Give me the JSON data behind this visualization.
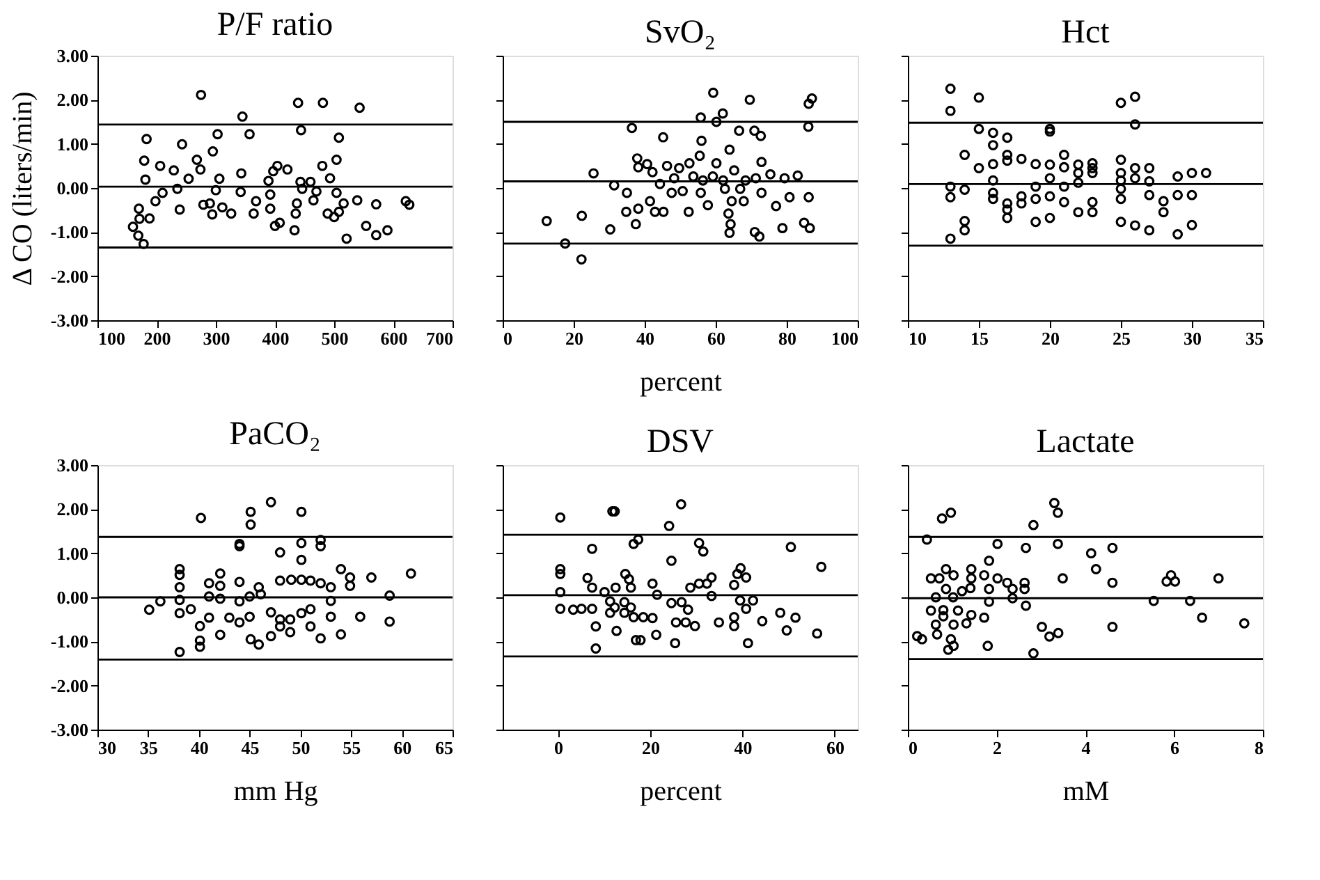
{
  "chart_data": [
    {
      "type": "scatter",
      "title": "P/F ratio",
      "ylabel": "Δ CO (liters/min)",
      "marker": "circle",
      "grid": false,
      "xlim": [
        100,
        700
      ],
      "xticks": [
        100,
        200,
        300,
        400,
        500,
        600,
        700
      ],
      "ylim": [
        -3,
        3
      ],
      "yticks": [
        {
          "value": 3,
          "label": "3.00"
        },
        {
          "value": 2,
          "label": "2.00"
        },
        {
          "value": 1,
          "label": "1.00"
        },
        {
          "value": 0,
          "label": "0.00"
        },
        {
          "value": -1,
          "label": "-1.00"
        },
        {
          "value": -2,
          "label": "-2.00"
        },
        {
          "value": -3,
          "label": "-3.00"
        }
      ],
      "ref_lines": [
        {
          "axis": "y",
          "value": 1.44,
          "color": "#000000"
        },
        {
          "axis": "y",
          "value": 0.03,
          "color": "#000000"
        },
        {
          "axis": "y",
          "value": -1.35,
          "color": "#000000"
        }
      ],
      "series": [
        {
          "color": "#000000",
          "x": [
            275,
            439,
            481,
            543,
            345,
            444,
            357,
            303,
            183,
            508,
            243,
            295,
            268,
            179,
            504,
            480,
            206,
            229,
            274,
            343,
            397,
            404,
            421,
            181,
            254,
            306,
            389,
            443,
            460,
            493,
            235,
            210,
            300,
            342,
            392,
            446,
            470,
            504,
            198,
            279,
            311,
            290,
            368,
            392,
            437,
            465,
            516,
            539,
            571,
            621,
            627,
            239,
            294,
            326,
            364,
            435,
            489,
            500,
            508,
            170,
            188,
            171,
            160,
            169,
            178,
            400,
            408,
            433,
            554,
            571,
            590,
            521
          ],
          "values": [
            2.11,
            1.93,
            1.93,
            1.82,
            1.62,
            1.31,
            1.22,
            1.22,
            1.11,
            1.14,
            0.99,
            0.83,
            0.64,
            0.62,
            0.64,
            0.5,
            0.5,
            0.4,
            0.42,
            0.33,
            0.38,
            0.5,
            0.42,
            0.19,
            0.21,
            0.21,
            0.16,
            0.14,
            0.14,
            0.22,
            -0.02,
            -0.11,
            -0.05,
            -0.09,
            -0.15,
            -0.02,
            -0.08,
            -0.11,
            -0.3,
            -0.38,
            -0.44,
            -0.35,
            -0.3,
            -0.47,
            -0.35,
            -0.28,
            -0.35,
            -0.28,
            -0.37,
            -0.3,
            -0.38,
            -0.49,
            -0.6,
            -0.58,
            -0.58,
            -0.58,
            -0.58,
            -0.66,
            -0.54,
            -0.47,
            -0.69,
            -0.7,
            -0.88,
            -1.08,
            -1.27,
            -0.86,
            -0.79,
            -0.96,
            -0.86,
            -1.07,
            -0.96,
            -1.15
          ]
        }
      ]
    },
    {
      "type": "scatter",
      "title": "SvO₂",
      "xlabel": "percent",
      "marker": "circle",
      "grid": false,
      "tick_labels": "x",
      "xlim": [
        0,
        100
      ],
      "xticks": [
        0,
        20,
        40,
        60,
        80,
        100
      ],
      "ylim": [
        -3,
        3
      ],
      "yticks": [
        3,
        2,
        1,
        0,
        -1,
        -2,
        -3
      ],
      "ref_lines": [
        {
          "axis": "y",
          "value": 1.5,
          "color": "#000000"
        },
        {
          "axis": "y",
          "value": 0.15,
          "color": "#000000"
        },
        {
          "axis": "y",
          "value": -1.26,
          "color": "#000000"
        }
      ],
      "series": [
        {
          "color": "#000000",
          "x": [
            59.3,
            69.6,
            87.1,
            86.2,
            62.0,
            60.2,
            55.8,
            36.4,
            66.6,
            70.9,
            72.7,
            45.2,
            86.1,
            56.0,
            63.9,
            55.5,
            37.9,
            38.2,
            40.7,
            25.6,
            42.2,
            46.3,
            49.7,
            52.6,
            60.2,
            65.2,
            72.9,
            75.4,
            79.4,
            83.1,
            31.4,
            44.3,
            48.3,
            53.7,
            56.4,
            59.2,
            62.1,
            68.4,
            71.3,
            35.0,
            41.5,
            47.6,
            50.7,
            55.8,
            62.6,
            66.9,
            72.9,
            42.9,
            45.3,
            52.4,
            57.8,
            64.5,
            67.9,
            77.0,
            80.8,
            86.2,
            34.8,
            38.2,
            37.5,
            63.6,
            64.2,
            63.9,
            71.0,
            72.3,
            78.8,
            84.9,
            86.5,
            12.4,
            22.3,
            30.3,
            17.6,
            22.2
          ],
          "values": [
            2.16,
            2.0,
            2.03,
            1.91,
            1.69,
            1.5,
            1.6,
            1.36,
            1.3,
            1.3,
            1.18,
            1.15,
            1.39,
            1.07,
            0.87,
            0.73,
            0.67,
            0.47,
            0.54,
            0.33,
            0.36,
            0.5,
            0.45,
            0.56,
            0.56,
            0.4,
            0.59,
            0.31,
            0.22,
            0.28,
            0.06,
            0.09,
            0.22,
            0.26,
            0.17,
            0.26,
            0.17,
            0.17,
            0.22,
            -0.11,
            -0.3,
            -0.11,
            -0.07,
            -0.11,
            -0.02,
            -0.02,
            -0.11,
            -0.54,
            -0.54,
            -0.54,
            -0.39,
            -0.3,
            -0.3,
            -0.41,
            -0.21,
            -0.21,
            -0.54,
            -0.47,
            -0.82,
            -0.58,
            -0.82,
            -1.02,
            -1.0,
            -1.1,
            -0.91,
            -0.79,
            -0.91,
            -0.75,
            -0.63,
            -0.94,
            -1.26,
            -1.62
          ]
        }
      ]
    },
    {
      "type": "scatter",
      "title": "Hct",
      "marker": "circle",
      "grid": false,
      "tick_labels": "x",
      "xlim": [
        10,
        35
      ],
      "xticks": [
        10,
        15,
        20,
        25,
        30,
        35
      ],
      "ylim": [
        -3,
        3
      ],
      "yticks": [
        3,
        2,
        1,
        0,
        -1,
        -2,
        -3
      ],
      "ref_lines": [
        {
          "axis": "y",
          "value": 1.48,
          "color": "#000000"
        },
        {
          "axis": "y",
          "value": 0.09,
          "color": "#000000"
        },
        {
          "axis": "y",
          "value": -1.31,
          "color": "#000000"
        }
      ],
      "series": [
        {
          "color": "#000000",
          "x": [
            13,
            13,
            15,
            25,
            26,
            26,
            15,
            16,
            17,
            16,
            20,
            20,
            14,
            15,
            16,
            17,
            17,
            18,
            19,
            20,
            21,
            21,
            22,
            22,
            23,
            23,
            23,
            25,
            25,
            26,
            27,
            29,
            30,
            31,
            13,
            13,
            14,
            16,
            16,
            16,
            17,
            17,
            18,
            18,
            19,
            19,
            20,
            20,
            21,
            21,
            22,
            23,
            25,
            25,
            25,
            26,
            27,
            27,
            28,
            28,
            29,
            30,
            17,
            19,
            20,
            22,
            23,
            14,
            14,
            13,
            25,
            26,
            27,
            29,
            30
          ],
          "values": [
            2.25,
            1.75,
            2.05,
            1.93,
            2.07,
            1.44,
            1.34,
            1.25,
            1.14,
            0.97,
            1.34,
            1.28,
            0.75,
            0.45,
            0.54,
            0.75,
            0.62,
            0.66,
            0.54,
            0.53,
            0.75,
            0.47,
            0.53,
            0.34,
            0.56,
            0.45,
            0.34,
            0.64,
            0.34,
            0.45,
            0.45,
            0.26,
            0.34,
            0.34,
            0.03,
            -0.21,
            -0.04,
            0.17,
            -0.11,
            -0.25,
            -0.35,
            -0.49,
            -0.19,
            -0.35,
            0.03,
            -0.25,
            0.22,
            -0.19,
            0.03,
            -0.32,
            0.12,
            -0.32,
            0.17,
            -0.02,
            -0.25,
            0.22,
            0.15,
            -0.16,
            -0.3,
            -0.55,
            -0.16,
            -0.16,
            -0.68,
            -0.77,
            -0.68,
            -0.55,
            -0.55,
            -0.75,
            -0.96,
            -1.15,
            -0.77,
            -0.85,
            -0.96,
            -1.05,
            -0.84
          ]
        }
      ]
    },
    {
      "type": "scatter",
      "title": "PaCO₂",
      "xlabel": "mm Hg",
      "marker": "circle",
      "grid": false,
      "xlim": [
        30,
        65
      ],
      "xticks": [
        30,
        35,
        40,
        45,
        50,
        55,
        60,
        65
      ],
      "ylim": [
        -3,
        3
      ],
      "yticks": [
        {
          "value": 3,
          "label": "3.00"
        },
        {
          "value": 2,
          "label": "2.00"
        },
        {
          "value": 1,
          "label": "1.00"
        },
        {
          "value": 0,
          "label": "0.00"
        },
        {
          "value": -1,
          "label": "-1.00"
        },
        {
          "value": -2,
          "label": "-2.00"
        },
        {
          "value": -3,
          "label": "-3.00"
        }
      ],
      "ref_lines": [
        {
          "axis": "y",
          "value": 1.37,
          "color": "#000000"
        },
        {
          "axis": "y",
          "value": 0.0,
          "color": "#000000"
        },
        {
          "axis": "y",
          "value": -1.41,
          "color": "#000000"
        }
      ],
      "series": [
        {
          "color": "#000000",
          "x": [
            47.1,
            40.2,
            45.1,
            50.1,
            45.1,
            44.0,
            44.0,
            50.1,
            52.0,
            52.0,
            48.0,
            50.1,
            38.1,
            38.1,
            38.1,
            38.1,
            38.1,
            35.1,
            36.2,
            39.2,
            41.0,
            42.1,
            42.1,
            44.0,
            45.9,
            48.0,
            49.1,
            50.1,
            51.0,
            52.0,
            54.0,
            54.9,
            54.9,
            57.0,
            60.9,
            53.0,
            41.0,
            42.1,
            44.0,
            45.0,
            46.1,
            53.0,
            58.8,
            41.0,
            43.0,
            44.0,
            45.0,
            47.1,
            48.0,
            49.0,
            50.1,
            51.0,
            53.0,
            55.9,
            58.8,
            40.1,
            42.1,
            45.1,
            45.9,
            47.1,
            48.0,
            49.0,
            51.0,
            52.0,
            54.0,
            40.1,
            40.1,
            38.1
          ],
          "values": [
            2.16,
            1.8,
            1.94,
            1.94,
            1.65,
            1.21,
            1.16,
            1.23,
            1.3,
            1.16,
            1.02,
            0.85,
            0.64,
            0.51,
            0.23,
            -0.06,
            -0.36,
            -0.28,
            -0.09,
            -0.27,
            0.32,
            0.54,
            0.26,
            0.35,
            0.23,
            0.38,
            0.4,
            0.4,
            0.38,
            0.32,
            0.64,
            0.45,
            0.26,
            0.45,
            0.54,
            0.23,
            0.02,
            -0.03,
            -0.09,
            0.02,
            0.07,
            -0.08,
            0.04,
            -0.46,
            -0.46,
            -0.57,
            -0.44,
            -0.34,
            -0.5,
            -0.5,
            -0.36,
            -0.27,
            -0.44,
            -0.44,
            -0.55,
            -0.65,
            -0.85,
            -0.95,
            -1.07,
            -0.88,
            -0.66,
            -0.79,
            -0.66,
            -0.93,
            -0.84,
            -1.12,
            -0.98,
            -1.24
          ]
        }
      ]
    },
    {
      "type": "scatter",
      "title": "DSV",
      "xlabel": "percent",
      "marker": "circle",
      "grid": false,
      "tick_labels": "x",
      "xlim": [
        -12,
        65
      ],
      "xticks": [
        0,
        20,
        40,
        60
      ],
      "ylim": [
        -3,
        3
      ],
      "yticks": [
        3,
        2,
        1,
        0,
        -1,
        -2,
        -3
      ],
      "ref_lines": [
        {
          "axis": "y",
          "value": 1.42,
          "color": "#000000"
        },
        {
          "axis": "y",
          "value": 0.05,
          "color": "#000000"
        },
        {
          "axis": "y",
          "value": -1.34,
          "color": "#000000"
        }
      ],
      "series": [
        {
          "color": "#000000",
          "x": [
            0.5,
            11.8,
            12.3,
            26.7,
            24.1,
            17.4,
            16.4,
            7.4,
            30.6,
            31.5,
            50.5,
            24.6,
            57.1,
            0.5,
            0.5,
            6.4,
            14.6,
            15.4,
            20.5,
            12.5,
            7.4,
            15.8,
            28.7,
            30.6,
            32.3,
            33.3,
            38.2,
            38.9,
            39.6,
            40.8,
            0.5,
            10.1,
            21.5,
            33.3,
            0.5,
            3.3,
            5.1,
            7.4,
            11.3,
            12.3,
            14.4,
            15.8,
            18.5,
            24.6,
            26.8,
            28.2,
            39.5,
            42.3,
            40.8,
            11.3,
            14.4,
            16.4,
            20.5,
            25.6,
            27.7,
            29.7,
            34.9,
            38.2,
            38.2,
            44.3,
            48.2,
            51.5,
            49.6,
            56.2,
            8.2,
            12.7,
            16.9,
            21.3,
            25.4,
            41.2,
            8.2,
            17.9
          ],
          "values": [
            1.81,
            1.95,
            1.95,
            2.11,
            1.62,
            1.31,
            1.21,
            1.1,
            1.23,
            1.04,
            1.14,
            0.83,
            0.69,
            0.64,
            0.53,
            0.44,
            0.53,
            0.41,
            0.31,
            0.22,
            0.22,
            0.22,
            0.22,
            0.31,
            0.31,
            0.45,
            0.28,
            0.53,
            0.66,
            0.45,
            0.12,
            0.12,
            0.06,
            0.03,
            -0.26,
            -0.28,
            -0.26,
            -0.26,
            -0.09,
            -0.23,
            -0.11,
            -0.23,
            -0.45,
            -0.13,
            -0.11,
            -0.28,
            -0.07,
            -0.07,
            -0.26,
            -0.35,
            -0.35,
            -0.45,
            -0.47,
            -0.57,
            -0.57,
            -0.65,
            -0.57,
            -0.45,
            -0.65,
            -0.54,
            -0.35,
            -0.46,
            -0.75,
            -0.82,
            -0.66,
            -0.76,
            -0.97,
            -0.85,
            -1.04,
            -1.04,
            -1.16,
            -0.97
          ]
        }
      ]
    },
    {
      "type": "scatter",
      "title": "Lactate",
      "xlabel": "mM",
      "marker": "circle",
      "grid": false,
      "tick_labels": "x",
      "xlim": [
        0,
        8
      ],
      "xticks": [
        0,
        2,
        4,
        6,
        8
      ],
      "ylim": [
        -3,
        3
      ],
      "yticks": [
        3,
        2,
        1,
        0,
        -1,
        -2,
        -3
      ],
      "ref_lines": [
        {
          "axis": "y",
          "value": 1.37,
          "color": "#000000"
        },
        {
          "axis": "y",
          "value": -0.02,
          "color": "#000000"
        },
        {
          "axis": "y",
          "value": -1.4,
          "color": "#000000"
        }
      ],
      "series": [
        {
          "color": "#000000",
          "x": [
            3.3,
            3.38,
            0.77,
            0.97,
            2.83,
            0.43,
            2.02,
            2.66,
            3.38,
            4.61,
            4.13,
            1.83,
            4.24,
            0.86,
            1.43,
            1.03,
            0.52,
            0.71,
            1.43,
            1.72,
            2.02,
            2.24,
            2.63,
            3.49,
            4.61,
            5.83,
            6.02,
            5.93,
            7.0,
            0.86,
            1.22,
            1.41,
            1.83,
            2.36,
            2.63,
            0.63,
            1.02,
            2.36,
            1.83,
            5.54,
            6.36,
            0.52,
            0.8,
            1.13,
            1.43,
            0.8,
            1.32,
            1.72,
            2.66,
            6.63,
            7.58,
            0.63,
            1.03,
            0.66,
            0.21,
            0.32,
            0.97,
            1.03,
            0.91,
            1.8,
            3.02,
            3.19,
            3.39,
            4.61,
            2.83
          ],
          "values": [
            2.14,
            1.92,
            1.79,
            1.92,
            1.64,
            1.31,
            1.21,
            1.12,
            1.21,
            1.12,
            1.0,
            0.83,
            0.64,
            0.64,
            0.64,
            0.5,
            0.43,
            0.43,
            0.43,
            0.5,
            0.43,
            0.33,
            0.33,
            0.43,
            0.33,
            0.36,
            0.36,
            0.5,
            0.43,
            0.19,
            0.14,
            0.21,
            0.19,
            0.19,
            0.19,
            0.0,
            0.0,
            -0.02,
            -0.1,
            -0.08,
            -0.08,
            -0.3,
            -0.29,
            -0.3,
            -0.4,
            -0.43,
            -0.59,
            -0.46,
            -0.19,
            -0.46,
            -0.59,
            -0.62,
            -0.62,
            -0.84,
            -0.88,
            -0.95,
            -0.95,
            -1.1,
            -1.19,
            -1.1,
            -0.67,
            -0.89,
            -0.81,
            -0.67,
            -1.27
          ]
        }
      ]
    }
  ]
}
